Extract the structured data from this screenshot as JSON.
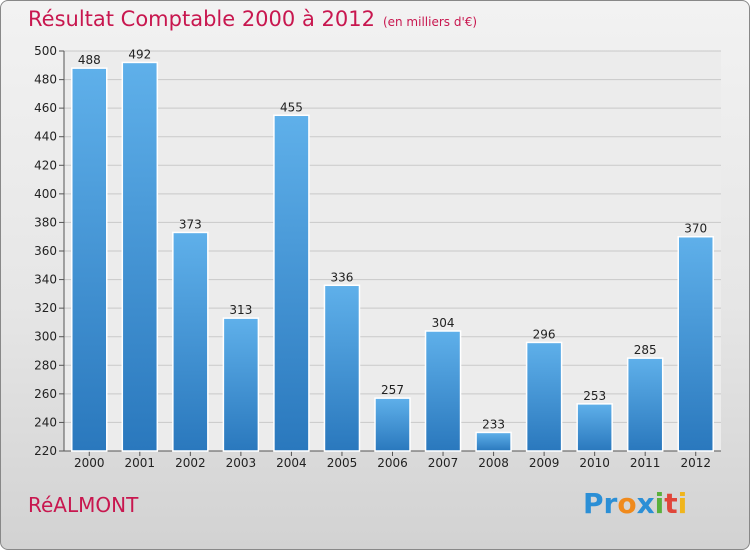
{
  "title": "Résultat Comptable 2000 à 2012",
  "unit": "(en milliers d'€)",
  "city": "RéALMONT",
  "logo": [
    "P",
    "r",
    "o",
    "x",
    "i",
    "t",
    "i"
  ],
  "logo_colors": [
    "#2b8fd6",
    "#2b8fd6",
    "#f08a1c",
    "#2b8fd6",
    "#5ab03c",
    "#e0463a",
    "#f0b51c"
  ],
  "chart_data": {
    "type": "bar",
    "title": "Résultat Comptable 2000 à 2012",
    "subtitle": "(en milliers d'€)",
    "xlabel": "",
    "ylabel": "",
    "categories": [
      "2000",
      "2001",
      "2002",
      "2003",
      "2004",
      "2005",
      "2006",
      "2007",
      "2008",
      "2009",
      "2010",
      "2011",
      "2012"
    ],
    "values": [
      488,
      492,
      373,
      313,
      455,
      336,
      257,
      304,
      233,
      296,
      253,
      285,
      370
    ],
    "ylim": [
      220,
      500
    ],
    "yticks": [
      220,
      240,
      260,
      280,
      300,
      320,
      340,
      360,
      380,
      400,
      420,
      440,
      460,
      480,
      500
    ],
    "grid": true,
    "bar_color": "#3a96db"
  }
}
